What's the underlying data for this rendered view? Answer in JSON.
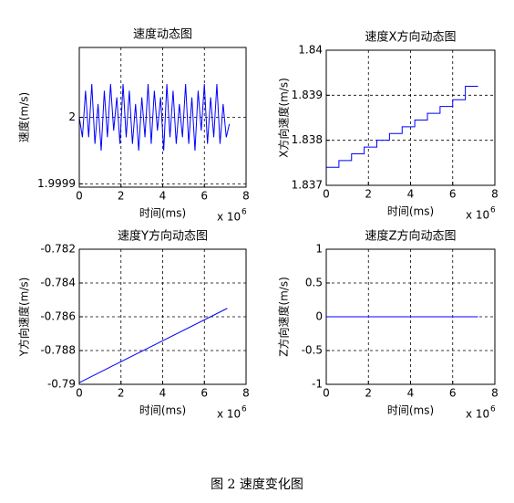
{
  "caption": "图 2 速度变化图",
  "chart_data": [
    {
      "type": "line",
      "title": "速度动态图",
      "xlabel": "时间(ms)",
      "ylabel": "速度(m/s)",
      "x_multiplier": "x 10",
      "x_multiplier_exp": "6",
      "color": "#0000ff",
      "grid": true,
      "xlim": [
        0,
        8000000
      ],
      "xticks": [
        {
          "value": 0,
          "label": "0"
        },
        {
          "value": 2000000,
          "label": "2"
        },
        {
          "value": 4000000,
          "label": "4"
        },
        {
          "value": 6000000,
          "label": "6"
        },
        {
          "value": 8000000,
          "label": "8"
        }
      ],
      "ylim": [
        1.999895,
        2.000105
      ],
      "yticks": [
        1.9999,
        2
      ],
      "x": [
        0,
        150000,
        300000,
        450000,
        600000,
        750000,
        900000,
        1050000,
        1200000,
        1350000,
        1500000,
        1650000,
        1800000,
        1950000,
        2100000,
        2250000,
        2400000,
        2550000,
        2700000,
        2850000,
        3000000,
        3150000,
        3300000,
        3450000,
        3600000,
        3750000,
        3900000,
        4050000,
        4200000,
        4350000,
        4500000,
        4650000,
        4800000,
        4950000,
        5100000,
        5250000,
        5400000,
        5550000,
        5700000,
        5850000,
        6000000,
        6150000,
        6300000,
        6450000,
        6600000,
        6750000,
        6900000,
        7050000,
        7200000
      ],
      "values": [
        2,
        1.99997,
        2.00004,
        1.99997,
        2.00005,
        1.99996,
        2.00002,
        1.99995,
        2.00004,
        1.99997,
        2.00005,
        1.99998,
        2.00003,
        1.99996,
        2.00005,
        1.99997,
        2.00004,
        1.99996,
        2.00002,
        1.99995,
        2.00003,
        1.99997,
        2.00005,
        1.99996,
        2.00004,
        1.99998,
        2.00003,
        1.99995,
        2.00005,
        1.99997,
        2.00004,
        1.99996,
        2.00002,
        1.99997,
        2.00005,
        1.99996,
        2.00003,
        1.99995,
        2.00004,
        1.99998,
        2.00005,
        1.99996,
        2.00003,
        1.99997,
        2.00005,
        1.99996,
        2.00002,
        1.99997,
        1.99999
      ]
    },
    {
      "type": "line",
      "title": "速度X方向动态图",
      "xlabel": "时间(ms)",
      "ylabel": "X方向速度(m/s)",
      "x_multiplier": "x 10",
      "x_multiplier_exp": "6",
      "color": "#0000ff",
      "grid": true,
      "xlim": [
        0,
        8000000
      ],
      "xticks": [
        {
          "value": 0,
          "label": "0"
        },
        {
          "value": 2000000,
          "label": "2"
        },
        {
          "value": 4000000,
          "label": "4"
        },
        {
          "value": 6000000,
          "label": "6"
        },
        {
          "value": 8000000,
          "label": "8"
        }
      ],
      "ylim": [
        1.837,
        1.84
      ],
      "yticks": [
        1.837,
        1.838,
        1.839,
        1.84
      ],
      "x": [
        0,
        600000,
        600000,
        1200000,
        1200000,
        1800000,
        1800000,
        2400000,
        2400000,
        3000000,
        3000000,
        3600000,
        3600000,
        4200000,
        4200000,
        4800000,
        4800000,
        5400000,
        5400000,
        6000000,
        6000000,
        6600000,
        6600000,
        7200000
      ],
      "values": [
        1.8374,
        1.8374,
        1.83755,
        1.83755,
        1.8377,
        1.8377,
        1.83785,
        1.83785,
        1.838,
        1.838,
        1.83815,
        1.83815,
        1.8383,
        1.8383,
        1.83845,
        1.83845,
        1.8386,
        1.8386,
        1.83875,
        1.83875,
        1.8389,
        1.8389,
        1.8392,
        1.8392
      ]
    },
    {
      "type": "line",
      "title": "速度Y方向动态图",
      "xlabel": "时间(ms)",
      "ylabel": "Y方向速度(m/s)",
      "x_multiplier": "x 10",
      "x_multiplier_exp": "6",
      "color": "#0000ff",
      "grid": true,
      "xlim": [
        0,
        8000000
      ],
      "xticks": [
        {
          "value": 0,
          "label": "0"
        },
        {
          "value": 2000000,
          "label": "2"
        },
        {
          "value": 4000000,
          "label": "4"
        },
        {
          "value": 6000000,
          "label": "6"
        },
        {
          "value": 8000000,
          "label": "8"
        }
      ],
      "ylim": [
        -0.79,
        -0.782
      ],
      "yticks": [
        -0.79,
        -0.788,
        -0.786,
        -0.784,
        -0.782
      ],
      "x": [
        0,
        7100000
      ],
      "values": [
        -0.7899,
        -0.7855
      ]
    },
    {
      "type": "line",
      "title": "速度Z方向动态图",
      "xlabel": "时间(ms)",
      "ylabel": "Z方向速度(m/s)",
      "x_multiplier": "x 10",
      "x_multiplier_exp": "6",
      "color": "#0000ff",
      "grid": true,
      "xlim": [
        0,
        8000000
      ],
      "xticks": [
        {
          "value": 0,
          "label": "0"
        },
        {
          "value": 2000000,
          "label": "2"
        },
        {
          "value": 4000000,
          "label": "4"
        },
        {
          "value": 6000000,
          "label": "6"
        },
        {
          "value": 8000000,
          "label": "8"
        }
      ],
      "ylim": [
        -1,
        1
      ],
      "yticks": [
        -1,
        -0.5,
        0,
        0.5,
        1
      ],
      "x": [
        0,
        7200000
      ],
      "values": [
        0,
        0
      ]
    }
  ]
}
